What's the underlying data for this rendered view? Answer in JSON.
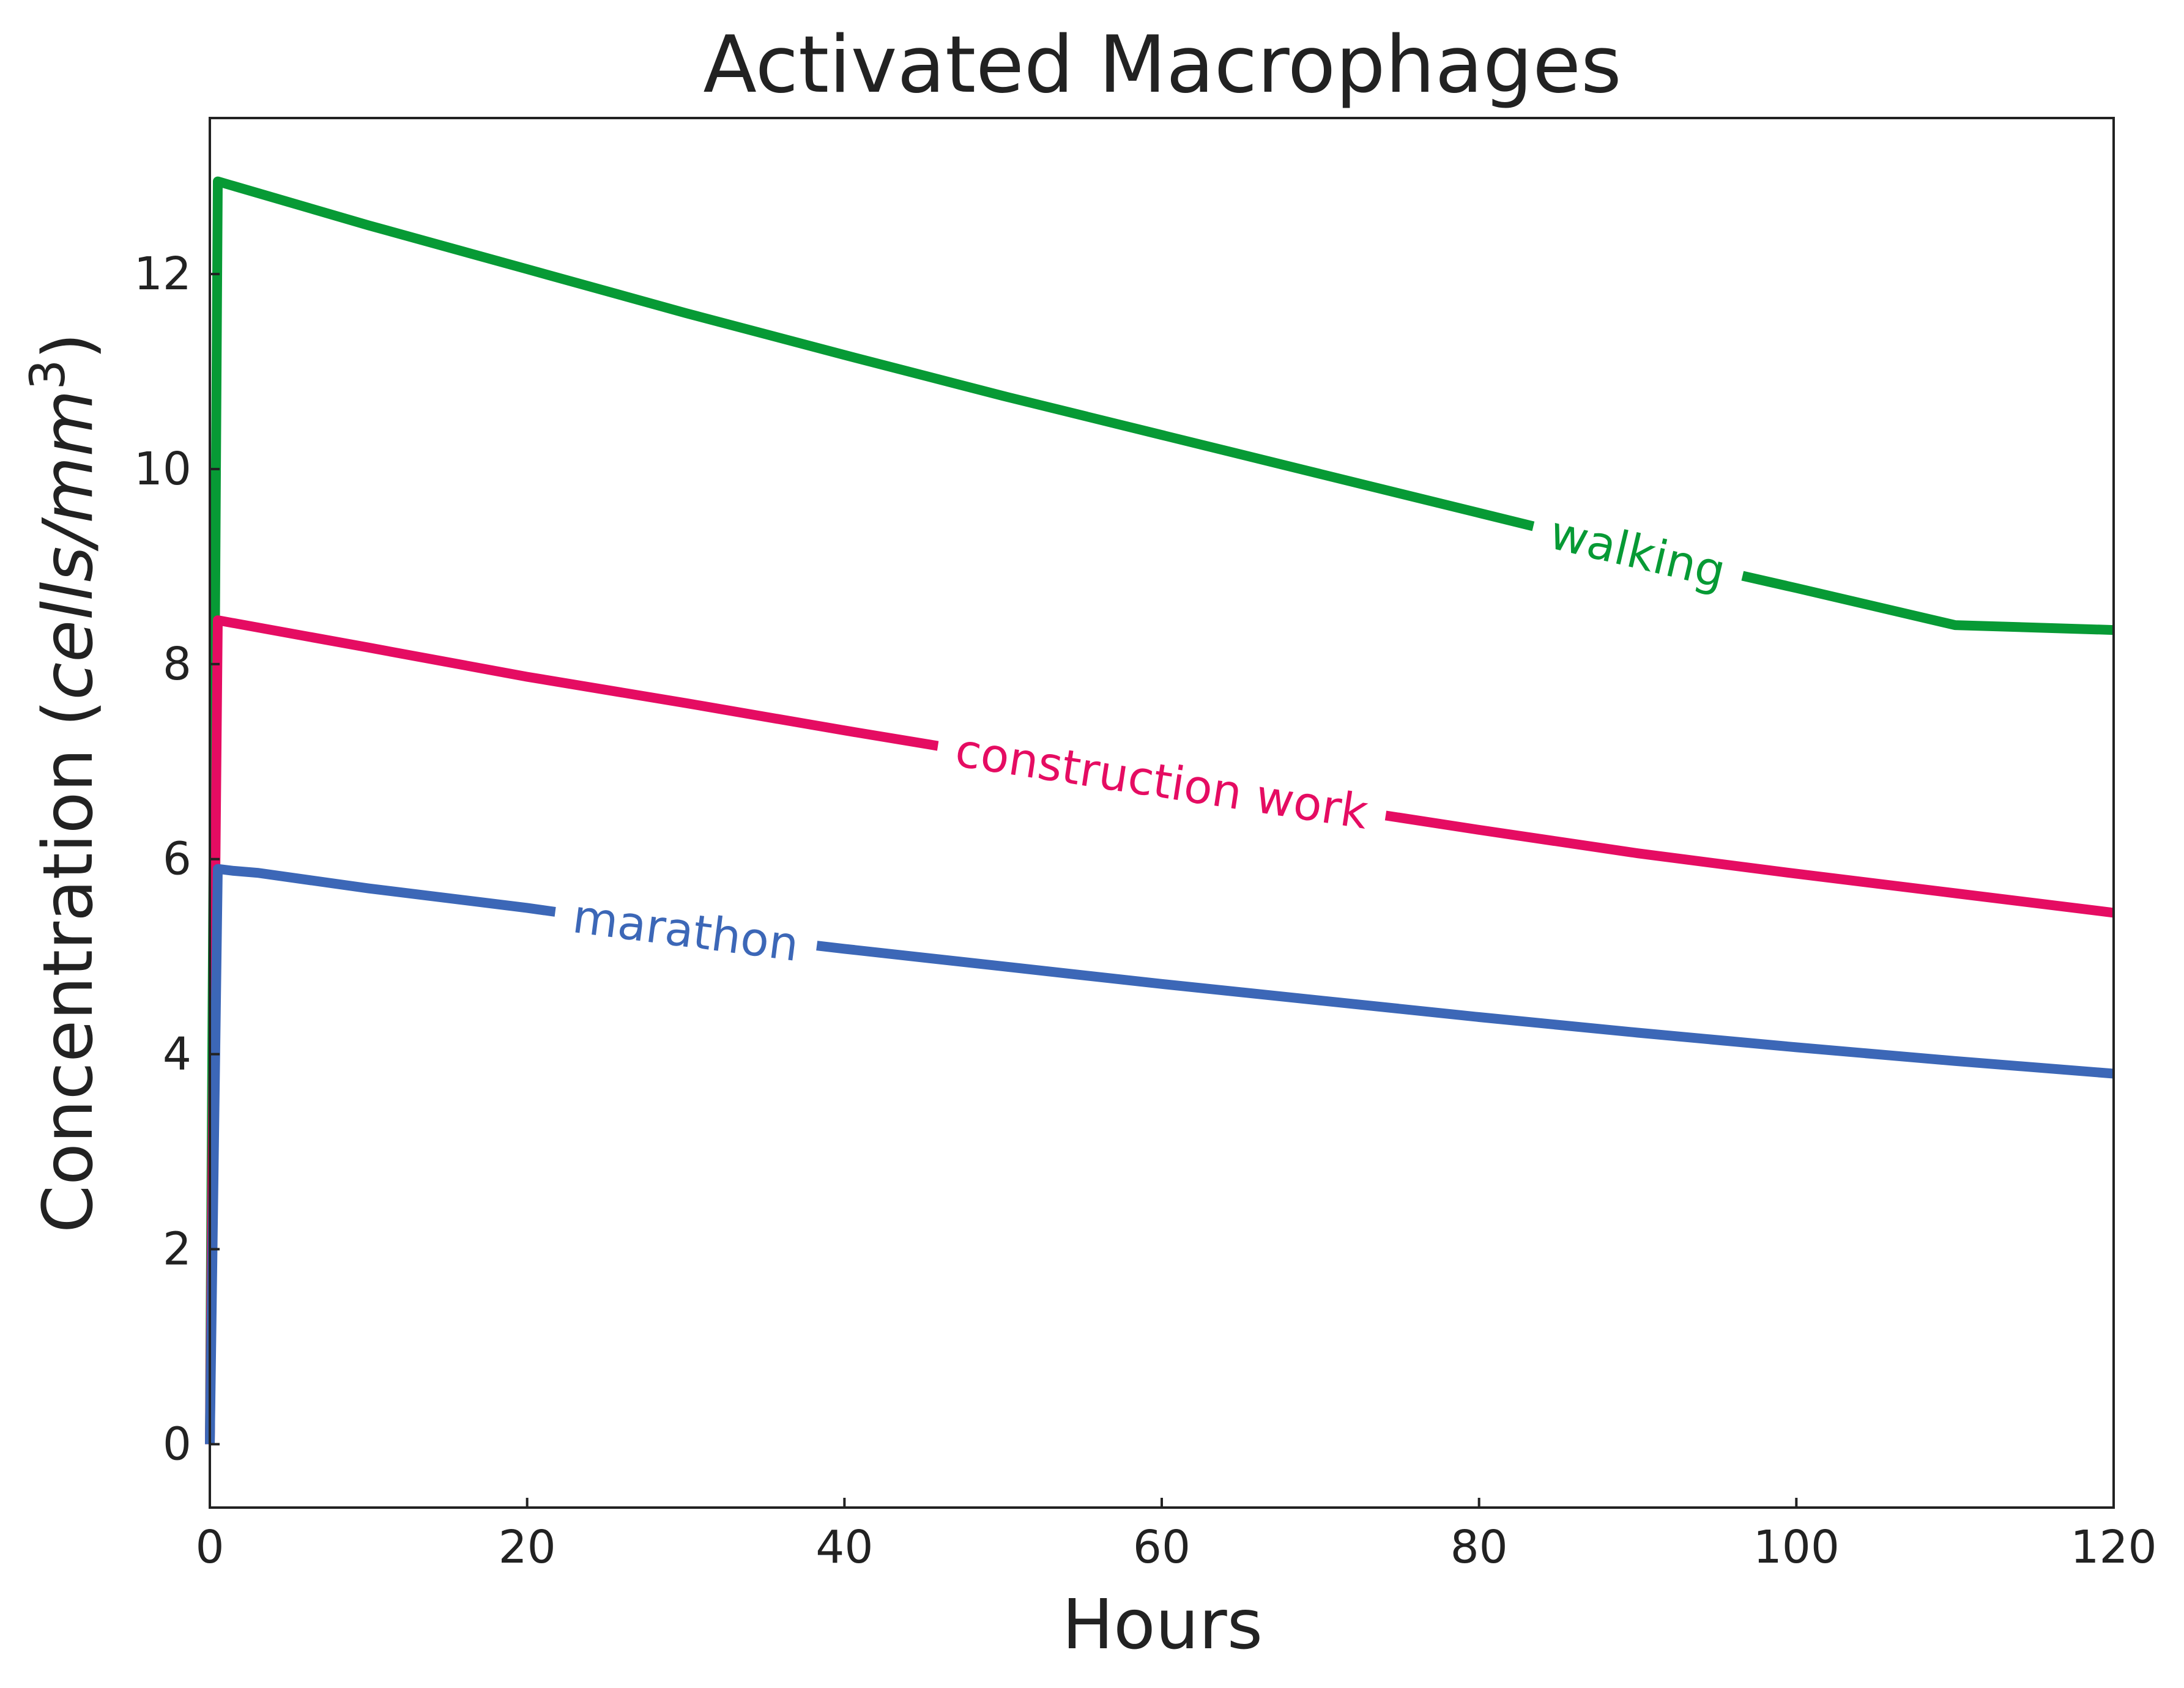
{
  "chart_data": {
    "type": "line",
    "title": "Activated Macrophages",
    "xlabel": "Hours",
    "ylabel_prefix": "Concentration (",
    "ylabel_units": "cells/mm",
    "ylabel_exponent": "3",
    "ylabel_suffix": ")",
    "xlim": [
      0,
      120
    ],
    "ylim": [
      -0.65,
      13.6
    ],
    "xticks": [
      0,
      20,
      40,
      60,
      80,
      100,
      120
    ],
    "yticks": [
      0,
      2,
      4,
      6,
      8,
      10,
      12
    ],
    "xtick_labels": [
      "0",
      "20",
      "40",
      "60",
      "80",
      "100",
      "120"
    ],
    "ytick_labels": [
      "0",
      "2",
      "4",
      "6",
      "8",
      "10",
      "12"
    ],
    "grid": false,
    "legend": "inline labels",
    "series": [
      {
        "name": "walking",
        "color": "#079a35",
        "label_x": 90,
        "x": [
          0,
          0.5,
          10,
          20,
          30,
          40,
          50,
          60,
          70,
          80,
          90,
          100,
          110,
          120
        ],
        "y": [
          0,
          12.95,
          12.5,
          12.05,
          11.6,
          11.17,
          10.75,
          10.35,
          9.95,
          9.55,
          9.15,
          8.78,
          8.4,
          8.35
        ]
      },
      {
        "name": "construction work",
        "color": "#e50c62",
        "label_x": 60,
        "x": [
          0,
          0.5,
          10,
          20,
          30,
          40,
          50,
          60,
          70,
          80,
          90,
          100,
          110,
          120
        ],
        "y": [
          0,
          8.45,
          8.17,
          7.87,
          7.6,
          7.32,
          7.05,
          6.8,
          6.55,
          6.3,
          6.06,
          5.85,
          5.65,
          5.45
        ]
      },
      {
        "name": "marathon",
        "color": "#3c67b7",
        "label_x": 30,
        "x": [
          0,
          0.5,
          1.5,
          3,
          10,
          20,
          30,
          40,
          50,
          60,
          70,
          80,
          90,
          100,
          110,
          120
        ],
        "y": [
          0,
          5.9,
          5.88,
          5.86,
          5.7,
          5.5,
          5.27,
          5.08,
          4.9,
          4.72,
          4.55,
          4.38,
          4.22,
          4.07,
          3.93,
          3.8
        ]
      }
    ]
  }
}
